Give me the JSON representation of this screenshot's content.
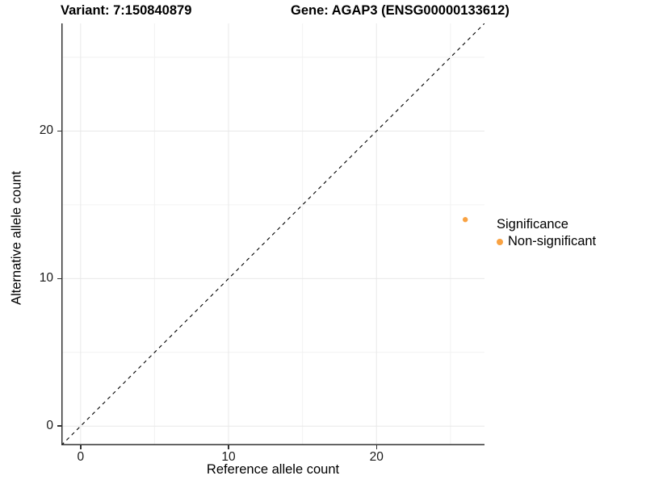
{
  "figure": {
    "title_left": "Variant: 7:150840879",
    "title_right": "Gene: AGAP3 (ENSG00000133612)"
  },
  "axes": {
    "x_title": "Reference allele count",
    "y_title": "Alternative allele count"
  },
  "legend": {
    "title": "Significance",
    "items": [
      {
        "label": "Non-significant",
        "color": "#F9A242"
      }
    ]
  },
  "chart_data": {
    "type": "scatter",
    "title": "Variant: 7:150840879    Gene: AGAP3 (ENSG00000133612)",
    "xlabel": "Reference allele count",
    "ylabel": "Alternative allele count",
    "xlim": [
      -1.3,
      27.3
    ],
    "ylim": [
      -1.3,
      27.3
    ],
    "x_ticks": [
      0,
      10,
      20
    ],
    "y_ticks": [
      0,
      10,
      20
    ],
    "minor_gridlines_x": [
      5,
      15,
      25
    ],
    "minor_gridlines_y": [
      5,
      15,
      25
    ],
    "grid": true,
    "legend_position": "right",
    "legend_title": "Significance",
    "series": [
      {
        "name": "Non-significant",
        "color": "#F9A242",
        "marker": "circle",
        "marker_radius_px": 3.2,
        "points": [
          {
            "x": 26,
            "y": 14
          }
        ]
      }
    ],
    "reference_line": {
      "type": "identity y=x",
      "style": "dashed",
      "color": "#000000",
      "from": [
        -1.3,
        -1.3
      ],
      "to": [
        27.3,
        27.3
      ]
    },
    "style": {
      "major_grid_color": "#e8e8e8",
      "minor_grid_color": "#f2f2f2",
      "axis_line_color": "#333333",
      "background": "#ffffff"
    }
  }
}
